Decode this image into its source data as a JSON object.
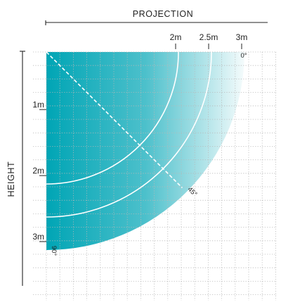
{
  "diagram": {
    "x_axis_title": "PROJECTION",
    "y_axis_title": "HEIGHT",
    "projection_ticks": [
      {
        "label": "2m",
        "value": 2
      },
      {
        "label": "2.5m",
        "value": 2.5
      },
      {
        "label": "3m",
        "value": 3
      }
    ],
    "height_ticks": [
      {
        "label": "1m",
        "value": 1
      },
      {
        "label": "2m",
        "value": 2
      },
      {
        "label": "3m",
        "value": 3
      }
    ],
    "angles": [
      {
        "label": "0°",
        "value": 0
      },
      {
        "label": "45°",
        "value": 45
      },
      {
        "label": "90°",
        "value": 90
      }
    ],
    "coverage_radius_m": 3,
    "range_arcs_m": [
      2,
      2.5
    ],
    "fill_color": "#00a5b5",
    "grid_color": "#b8b8b8"
  }
}
